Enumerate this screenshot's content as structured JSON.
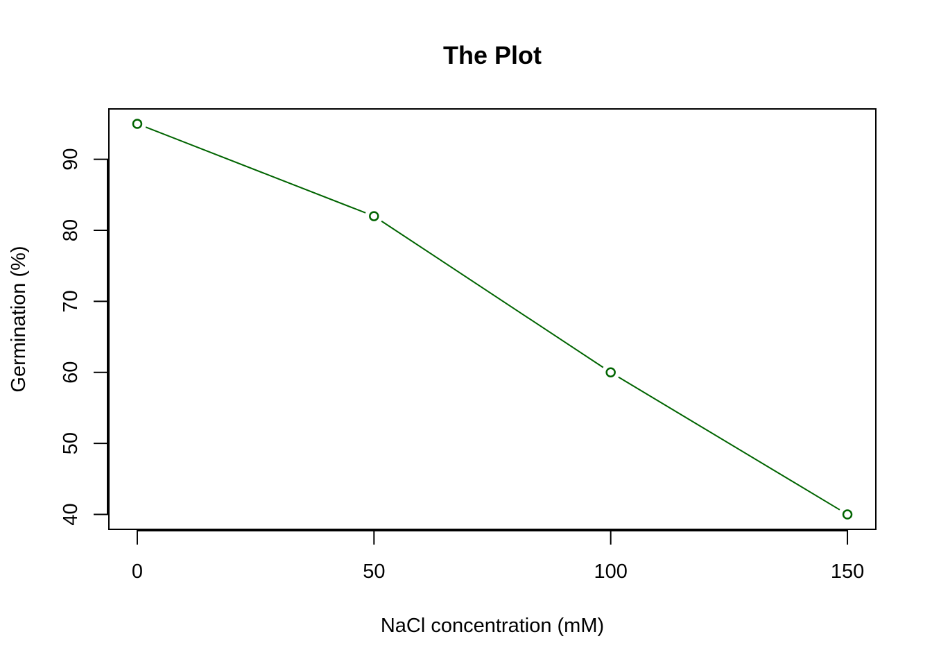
{
  "chart_data": {
    "type": "line",
    "title": "The Plot",
    "xlabel": "NaCl concentration (mM)",
    "ylabel": "Germination (%)",
    "x": [
      0,
      50,
      100,
      150
    ],
    "xticks": [
      "0",
      "50",
      "100",
      "150"
    ],
    "yticks": [
      "40",
      "50",
      "60",
      "70",
      "80",
      "90"
    ],
    "xlim": [
      -6,
      156
    ],
    "ylim": [
      37.9,
      97.1
    ],
    "grid": false,
    "series": [
      {
        "values": [
          95,
          82,
          60,
          40
        ],
        "color": "#006400",
        "marker": "open-circle",
        "line_style": "solid"
      }
    ]
  }
}
